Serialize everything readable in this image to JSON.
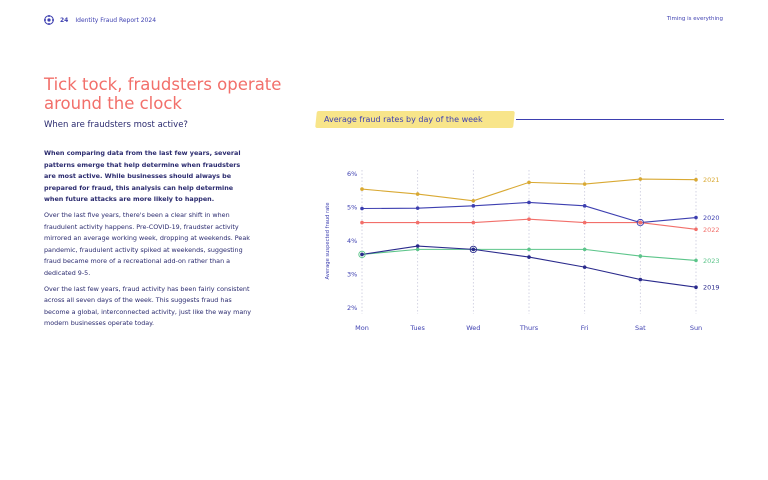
{
  "header": {
    "page_number": "24",
    "report_title": "Identity Fraud Report 2024",
    "section": "Timing is everything"
  },
  "headline": "Tick tock, fraudsters operate around the clock",
  "subheading": "When are fraudsters most active?",
  "body": {
    "lead": "When comparing data from the last few years, several patterns emerge that help determine when fraudsters are most active. While businesses should always be prepared for fraud, this analysis can help determine when future attacks are more likely to happen.",
    "para2": "Over the last five years, there's been a clear shift in when fraudulent activity happens. Pre-COVID-19, fraudster activity mirrored an average working week, dropping at weekends. Peak pandemic, fraudulent activity spiked at weekends, suggesting fraud became more of a recreational add-on rather than a dedicated 9-5.",
    "para3": "Over the last few years, fraud activity has been fairly consistent across all seven days of the week. This suggests fraud has become a global, interconnected activity, just like the way many modern businesses operate today."
  },
  "chart_data": {
    "type": "line",
    "title": "Average fraud rates by day of the week",
    "xlabel": "",
    "ylabel": "Average suspected fraud rate",
    "categories": [
      "Mon",
      "Tues",
      "Wed",
      "Thurs",
      "Fri",
      "Sat",
      "Sun"
    ],
    "y_ticks": [
      "2%",
      "3%",
      "4%",
      "5%",
      "6%"
    ],
    "ylim": [
      2,
      6
    ],
    "grid": "vertical dotted",
    "legend": "series labels at right end of lines",
    "series": [
      {
        "name": "2021",
        "color": "#d9a933",
        "values": [
          5.55,
          5.4,
          5.2,
          5.75,
          5.7,
          5.85,
          5.83
        ]
      },
      {
        "name": "2020",
        "color": "#3d3fb0",
        "values": [
          4.97,
          4.98,
          5.05,
          5.15,
          5.05,
          4.55,
          4.7
        ]
      },
      {
        "name": "2022",
        "color": "#f26f6a",
        "values": [
          4.55,
          4.55,
          4.55,
          4.65,
          4.55,
          4.55,
          4.35
        ]
      },
      {
        "name": "2023",
        "color": "#5cc58a",
        "values": [
          3.6,
          3.75,
          3.75,
          3.75,
          3.75,
          3.55,
          3.42
        ]
      },
      {
        "name": "2019",
        "color": "#2a2a8c",
        "values": [
          3.6,
          3.85,
          3.75,
          3.52,
          3.22,
          2.85,
          2.62
        ]
      }
    ]
  }
}
